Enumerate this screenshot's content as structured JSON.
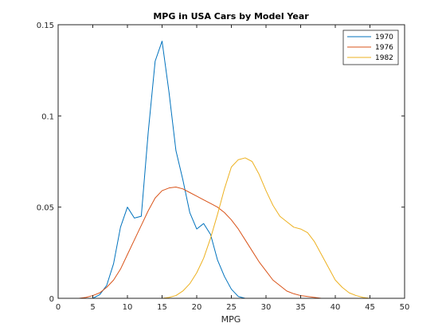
{
  "chart_data": {
    "type": "line",
    "title": "MPG in USA Cars by Model Year",
    "xlabel": "MPG",
    "ylabel": "",
    "xlim": [
      0,
      50
    ],
    "ylim": [
      0,
      0.15
    ],
    "xticks": [
      0,
      5,
      10,
      15,
      20,
      25,
      30,
      35,
      40,
      45,
      50
    ],
    "yticks": [
      0,
      0.05,
      0.1,
      0.15
    ],
    "xtick_labels": [
      "0",
      "5",
      "10",
      "15",
      "20",
      "25",
      "30",
      "35",
      "40",
      "45",
      "50"
    ],
    "ytick_labels": [
      "0",
      "0.05",
      "0.1",
      "0.15"
    ],
    "grid": false,
    "legend_position": "top-right",
    "series": [
      {
        "name": "1970",
        "color": "#0072bd",
        "x": [
          3,
          4,
          5,
          6,
          7,
          8,
          9,
          10,
          11,
          12,
          13,
          14,
          15,
          16,
          17,
          18,
          19,
          20,
          21,
          22,
          23,
          24,
          25,
          26,
          27,
          28,
          29,
          30,
          31,
          32,
          33,
          34,
          35,
          36,
          37,
          38,
          39,
          40,
          41,
          42,
          43,
          44,
          45
        ],
        "y": [
          0,
          0,
          0,
          0.002,
          0.007,
          0.019,
          0.039,
          0.05,
          0.044,
          0.045,
          0.091,
          0.13,
          0.141,
          0.113,
          0.081,
          0.065,
          0.047,
          0.038,
          0.041,
          0.035,
          0.021,
          0.012,
          0.005,
          0.001,
          0,
          0,
          0,
          0,
          0,
          0,
          0,
          0,
          0,
          0,
          0,
          0,
          0,
          0,
          0,
          0,
          0,
          0,
          0
        ]
      },
      {
        "name": "1976",
        "color": "#d95319",
        "x": [
          3,
          4,
          5,
          6,
          7,
          8,
          9,
          10,
          11,
          12,
          13,
          14,
          15,
          16,
          17,
          18,
          19,
          20,
          21,
          22,
          23,
          24,
          25,
          26,
          27,
          28,
          29,
          30,
          31,
          32,
          33,
          34,
          35,
          36,
          37,
          38,
          39,
          40,
          41,
          42,
          43,
          44,
          45
        ],
        "y": [
          0,
          0.0005,
          0.0015,
          0.003,
          0.006,
          0.01,
          0.016,
          0.024,
          0.032,
          0.04,
          0.048,
          0.055,
          0.059,
          0.0605,
          0.061,
          0.06,
          0.058,
          0.056,
          0.054,
          0.052,
          0.05,
          0.047,
          0.043,
          0.038,
          0.032,
          0.026,
          0.02,
          0.015,
          0.01,
          0.007,
          0.004,
          0.0025,
          0.0015,
          0.001,
          0.0005,
          0,
          0,
          0,
          0,
          0,
          0,
          0,
          0
        ]
      },
      {
        "name": "1982",
        "color": "#edb120",
        "x": [
          3,
          4,
          5,
          6,
          7,
          8,
          9,
          10,
          11,
          12,
          13,
          14,
          15,
          16,
          17,
          18,
          19,
          20,
          21,
          22,
          23,
          24,
          25,
          26,
          27,
          28,
          29,
          30,
          31,
          32,
          33,
          34,
          35,
          36,
          37,
          38,
          39,
          40,
          41,
          42,
          43,
          44,
          45
        ],
        "y": [
          0,
          0,
          0,
          0,
          0,
          0,
          0,
          0,
          0,
          0,
          0,
          0,
          0,
          0.0005,
          0.0015,
          0.004,
          0.008,
          0.014,
          0.022,
          0.033,
          0.046,
          0.06,
          0.072,
          0.076,
          0.077,
          0.075,
          0.068,
          0.059,
          0.051,
          0.045,
          0.042,
          0.039,
          0.038,
          0.036,
          0.031,
          0.024,
          0.017,
          0.01,
          0.006,
          0.003,
          0.0015,
          0.0005,
          0
        ]
      }
    ]
  }
}
